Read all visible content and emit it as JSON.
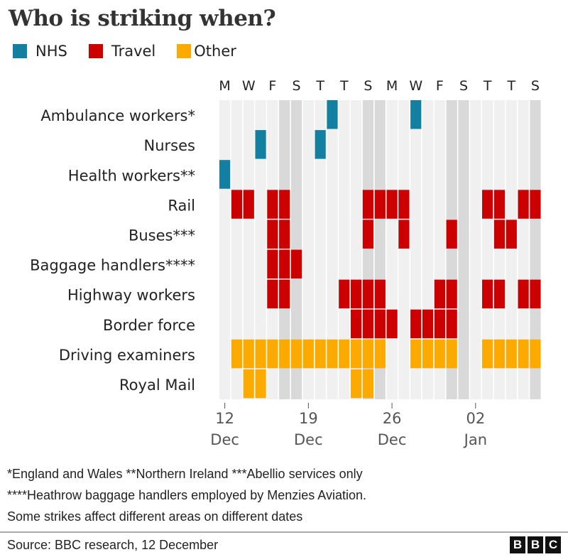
{
  "title": "Who is striking when?",
  "legend": [
    {
      "label": "NHS",
      "color": "#1380a1"
    },
    {
      "label": "Travel",
      "color": "#cc0000"
    },
    {
      "label": "Other",
      "color": "#fdaa00"
    }
  ],
  "chart_data": {
    "type": "heatmap",
    "title": "Who is striking when?",
    "dates": [
      "12 Dec",
      "13 Dec",
      "14 Dec",
      "15 Dec",
      "16 Dec",
      "17 Dec",
      "18 Dec",
      "19 Dec",
      "20 Dec",
      "21 Dec",
      "22 Dec",
      "23 Dec",
      "24 Dec",
      "25 Dec",
      "26 Dec",
      "27 Dec",
      "28 Dec",
      "29 Dec",
      "30 Dec",
      "31 Dec",
      "01 Jan",
      "02 Jan",
      "03 Jan",
      "04 Jan",
      "05 Jan",
      "06 Jan",
      "07 Jan"
    ],
    "weekend_dates": [
      "17 Dec",
      "18 Dec",
      "24 Dec",
      "25 Dec",
      "31 Dec",
      "01 Jan",
      "07 Jan"
    ],
    "day_labels": [
      "M",
      "W",
      "F",
      "S",
      "T",
      "T",
      "S",
      "M",
      "W",
      "F",
      "S",
      "T",
      "T",
      "S"
    ],
    "x_ticks": [
      {
        "date": "12 Dec",
        "day": "12",
        "month": "Dec"
      },
      {
        "date": "19 Dec",
        "day": "19",
        "month": "Dec"
      },
      {
        "date": "26 Dec",
        "day": "26",
        "month": "Dec"
      },
      {
        "date": "02 Jan",
        "day": "02",
        "month": "Jan"
      }
    ],
    "colors": {
      "weekday_bg": "#f0f0f0",
      "weekend_bg": "#d9d9d9"
    },
    "rows": [
      {
        "label": "Ambulance workers*",
        "category": "NHS",
        "strike_dates": [
          "21 Dec",
          "28 Dec"
        ]
      },
      {
        "label": "Nurses",
        "category": "NHS",
        "strike_dates": [
          "15 Dec",
          "20 Dec"
        ]
      },
      {
        "label": "Health workers**",
        "category": "NHS",
        "strike_dates": [
          "12 Dec"
        ]
      },
      {
        "label": "Rail",
        "category": "Travel",
        "strike_dates": [
          "13 Dec",
          "14 Dec",
          "16 Dec",
          "17 Dec",
          "24 Dec",
          "25 Dec",
          "26 Dec",
          "27 Dec",
          "03 Jan",
          "04 Jan",
          "06 Jan",
          "07 Jan"
        ]
      },
      {
        "label": "Buses***",
        "category": "Travel",
        "strike_dates": [
          "16 Dec",
          "17 Dec",
          "24 Dec",
          "27 Dec",
          "31 Dec",
          "04 Jan",
          "05 Jan"
        ]
      },
      {
        "label": "Baggage handlers****",
        "category": "Travel",
        "strike_dates": [
          "16 Dec",
          "17 Dec",
          "18 Dec"
        ]
      },
      {
        "label": "Highway workers",
        "category": "Travel",
        "strike_dates": [
          "16 Dec",
          "17 Dec",
          "22 Dec",
          "23 Dec",
          "24 Dec",
          "25 Dec",
          "30 Dec",
          "31 Dec",
          "03 Jan",
          "04 Jan",
          "06 Jan",
          "07 Jan"
        ]
      },
      {
        "label": "Border force",
        "category": "Travel",
        "strike_dates": [
          "23 Dec",
          "24 Dec",
          "25 Dec",
          "26 Dec",
          "28 Dec",
          "29 Dec",
          "30 Dec",
          "31 Dec"
        ]
      },
      {
        "label": "Driving examiners",
        "category": "Other",
        "strike_dates": [
          "13 Dec",
          "14 Dec",
          "15 Dec",
          "16 Dec",
          "17 Dec",
          "18 Dec",
          "19 Dec",
          "20 Dec",
          "21 Dec",
          "22 Dec",
          "23 Dec",
          "24 Dec",
          "25 Dec",
          "28 Dec",
          "29 Dec",
          "30 Dec",
          "31 Dec",
          "03 Jan",
          "04 Jan",
          "05 Jan",
          "06 Jan",
          "07 Jan"
        ]
      },
      {
        "label": "Royal Mail",
        "category": "Other",
        "strike_dates": [
          "14 Dec",
          "15 Dec",
          "23 Dec",
          "24 Dec"
        ]
      }
    ]
  },
  "footnotes": [
    "*England and Wales  **Northern Ireland  ***Abellio services only",
    "****Heathrow baggage handlers employed by Menzies Aviation.",
    "Some strikes affect different areas on different dates"
  ],
  "source": "Source: BBC research, 12 December",
  "logo": [
    "B",
    "B",
    "C"
  ]
}
